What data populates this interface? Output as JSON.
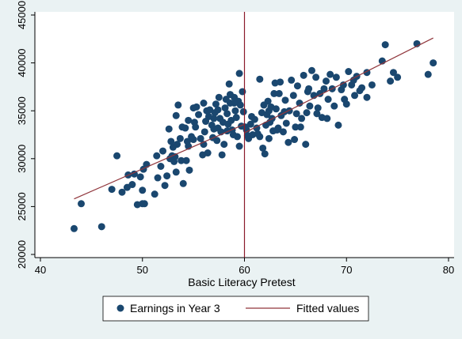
{
  "chart_data": {
    "type": "scatter",
    "xlabel": "Basic Literacy Pretest",
    "ylabel": "",
    "xlim": [
      40,
      80
    ],
    "ylim": [
      20000,
      45000
    ],
    "x_ticks": [
      40,
      50,
      60,
      70,
      80
    ],
    "y_ticks": [
      20000,
      25000,
      30000,
      35000,
      40000,
      45000
    ],
    "grid": false,
    "legend_position": "bottom",
    "cutoff_x": 60,
    "colors": {
      "scatter": "#1a476f",
      "fit": "#90353b",
      "cutoff": "#8b1a2b",
      "background": "#eaf2f3"
    },
    "legend": {
      "scatter_label": "Earnings in Year 3",
      "fit_label": "Fitted values"
    },
    "series": [
      {
        "name": "Earnings in Year 3",
        "kind": "scatter",
        "points": [
          [
            43.3,
            22700
          ],
          [
            44.0,
            25300
          ],
          [
            46.0,
            22900
          ],
          [
            47.0,
            26800
          ],
          [
            47.5,
            30300
          ],
          [
            48.0,
            26500
          ],
          [
            48.5,
            27000
          ],
          [
            48.6,
            28300
          ],
          [
            49.0,
            27300
          ],
          [
            49.2,
            28400
          ],
          [
            49.5,
            25200
          ],
          [
            49.8,
            28100
          ],
          [
            50.0,
            25300
          ],
          [
            50.2,
            25300
          ],
          [
            50.0,
            26700
          ],
          [
            50.1,
            28900
          ],
          [
            50.4,
            29400
          ],
          [
            51.2,
            26300
          ],
          [
            51.5,
            28000
          ],
          [
            51.8,
            29200
          ],
          [
            52.0,
            30800
          ],
          [
            52.2,
            27200
          ],
          [
            52.4,
            28200
          ],
          [
            52.7,
            30000
          ],
          [
            52.8,
            31800
          ],
          [
            52.6,
            33100
          ],
          [
            53.0,
            31200
          ],
          [
            53.1,
            29700
          ],
          [
            53.3,
            28600
          ],
          [
            53.2,
            30200
          ],
          [
            53.4,
            31500
          ],
          [
            53.3,
            34500
          ],
          [
            53.5,
            35600
          ],
          [
            53.7,
            32100
          ],
          [
            53.8,
            29800
          ],
          [
            54.0,
            27400
          ],
          [
            54.2,
            33200
          ],
          [
            54.5,
            34000
          ],
          [
            54.4,
            31800
          ],
          [
            54.3,
            29800
          ],
          [
            54.5,
            31300
          ],
          [
            54.6,
            28800
          ],
          [
            55.0,
            35300
          ],
          [
            55.0,
            32000
          ],
          [
            55.1,
            33800
          ],
          [
            55.5,
            34600
          ],
          [
            55.3,
            35400
          ],
          [
            55.7,
            32100
          ],
          [
            56.0,
            31500
          ],
          [
            56.1,
            32800
          ],
          [
            56.2,
            33900
          ],
          [
            56.3,
            35000
          ],
          [
            56.4,
            30600
          ],
          [
            56.5,
            34400
          ],
          [
            56.6,
            35100
          ],
          [
            56.8,
            33500
          ],
          [
            57.0,
            33100
          ],
          [
            57.1,
            34800
          ],
          [
            57.2,
            35700
          ],
          [
            57.3,
            31900
          ],
          [
            57.4,
            33200
          ],
          [
            57.5,
            36400
          ],
          [
            57.6,
            34200
          ],
          [
            57.7,
            32800
          ],
          [
            57.8,
            30400
          ],
          [
            58.0,
            31500
          ],
          [
            58.1,
            35300
          ],
          [
            58.2,
            36200
          ],
          [
            58.3,
            34700
          ],
          [
            58.4,
            33600
          ],
          [
            58.5,
            37800
          ],
          [
            58.6,
            35800
          ],
          [
            58.7,
            34000
          ],
          [
            58.8,
            33000
          ],
          [
            59.0,
            36400
          ],
          [
            59.1,
            35000
          ],
          [
            59.2,
            34300
          ],
          [
            59.3,
            32300
          ],
          [
            59.4,
            36000
          ],
          [
            59.5,
            38900
          ],
          [
            59.6,
            35600
          ],
          [
            59.7,
            33400
          ],
          [
            59.8,
            37000
          ],
          [
            59.9,
            34900
          ],
          [
            59.5,
            31300
          ],
          [
            58.9,
            32500
          ],
          [
            57.9,
            33800
          ],
          [
            56.9,
            32200
          ],
          [
            55.9,
            30400
          ],
          [
            58.3,
            32900
          ],
          [
            60.2,
            33000
          ],
          [
            60.4,
            32100
          ],
          [
            60.6,
            33600
          ],
          [
            60.8,
            32500
          ],
          [
            61.0,
            34100
          ],
          [
            61.2,
            33200
          ],
          [
            61.5,
            38300
          ],
          [
            61.5,
            32300
          ],
          [
            61.7,
            34800
          ],
          [
            61.9,
            35600
          ],
          [
            62.0,
            30500
          ],
          [
            62.1,
            33500
          ],
          [
            62.2,
            34600
          ],
          [
            62.3,
            36000
          ],
          [
            62.4,
            35000
          ],
          [
            62.5,
            33800
          ],
          [
            62.6,
            35400
          ],
          [
            62.7,
            34200
          ],
          [
            62.8,
            32900
          ],
          [
            62.9,
            36800
          ],
          [
            63.0,
            37900
          ],
          [
            63.1,
            35200
          ],
          [
            63.2,
            33000
          ],
          [
            63.4,
            36800
          ],
          [
            63.5,
            38000
          ],
          [
            63.6,
            34500
          ],
          [
            63.8,
            32800
          ],
          [
            64.0,
            36100
          ],
          [
            64.1,
            33700
          ],
          [
            64.3,
            31700
          ],
          [
            64.4,
            35000
          ],
          [
            64.6,
            38200
          ],
          [
            64.8,
            36600
          ],
          [
            65.0,
            33300
          ],
          [
            65.1,
            34700
          ],
          [
            65.2,
            37600
          ],
          [
            65.4,
            35800
          ],
          [
            65.6,
            34200
          ],
          [
            65.8,
            38700
          ],
          [
            66.0,
            31500
          ],
          [
            66.1,
            34800
          ],
          [
            66.2,
            37000
          ],
          [
            66.4,
            35500
          ],
          [
            66.6,
            39200
          ],
          [
            66.8,
            36600
          ],
          [
            67.0,
            38500
          ],
          [
            67.2,
            35300
          ],
          [
            67.4,
            36800
          ],
          [
            67.6,
            34300
          ],
          [
            67.8,
            37300
          ],
          [
            68.0,
            38100
          ],
          [
            68.2,
            36200
          ],
          [
            68.4,
            38800
          ],
          [
            68.6,
            37300
          ],
          [
            68.8,
            35500
          ],
          [
            69.0,
            38500
          ],
          [
            69.2,
            33500
          ],
          [
            69.5,
            37200
          ],
          [
            69.8,
            36200
          ],
          [
            70.0,
            35700
          ],
          [
            70.2,
            39100
          ],
          [
            70.5,
            37700
          ],
          [
            70.8,
            36600
          ],
          [
            71.0,
            38600
          ],
          [
            71.5,
            37400
          ],
          [
            72.0,
            39000
          ],
          [
            72.0,
            36400
          ],
          [
            72.5,
            37700
          ],
          [
            73.5,
            40200
          ],
          [
            73.8,
            41900
          ],
          [
            74.3,
            38100
          ],
          [
            74.6,
            39000
          ],
          [
            75.0,
            38500
          ],
          [
            76.9,
            42000
          ],
          [
            78.0,
            38800
          ],
          [
            78.5,
            40000
          ],
          [
            60.1,
            33300
          ],
          [
            60.3,
            32400
          ],
          [
            60.7,
            34400
          ],
          [
            61.3,
            32600
          ],
          [
            61.8,
            31100
          ],
          [
            62.4,
            32100
          ],
          [
            63.3,
            33200
          ],
          [
            63.9,
            34900
          ],
          [
            64.9,
            32000
          ],
          [
            65.5,
            33300
          ],
          [
            66.3,
            37300
          ],
          [
            67.1,
            34700
          ],
          [
            68.1,
            34200
          ],
          [
            69.7,
            37700
          ],
          [
            70.7,
            38200
          ],
          [
            71.3,
            37100
          ],
          [
            57.0,
            34200
          ],
          [
            56.0,
            35800
          ],
          [
            55.2,
            33300
          ],
          [
            54.8,
            32300
          ],
          [
            53.9,
            33300
          ],
          [
            52.9,
            30300
          ],
          [
            51.4,
            30300
          ],
          [
            59.0,
            35800
          ],
          [
            58.6,
            36700
          ],
          [
            57.4,
            35100
          ]
        ]
      },
      {
        "name": "Fitted values",
        "kind": "line",
        "segments": [
          [
            [
              43.3,
              25800
            ],
            [
              60.0,
              33600
            ]
          ],
          [
            [
              60.0,
              32700
            ],
            [
              78.5,
              42600
            ]
          ]
        ]
      }
    ]
  }
}
